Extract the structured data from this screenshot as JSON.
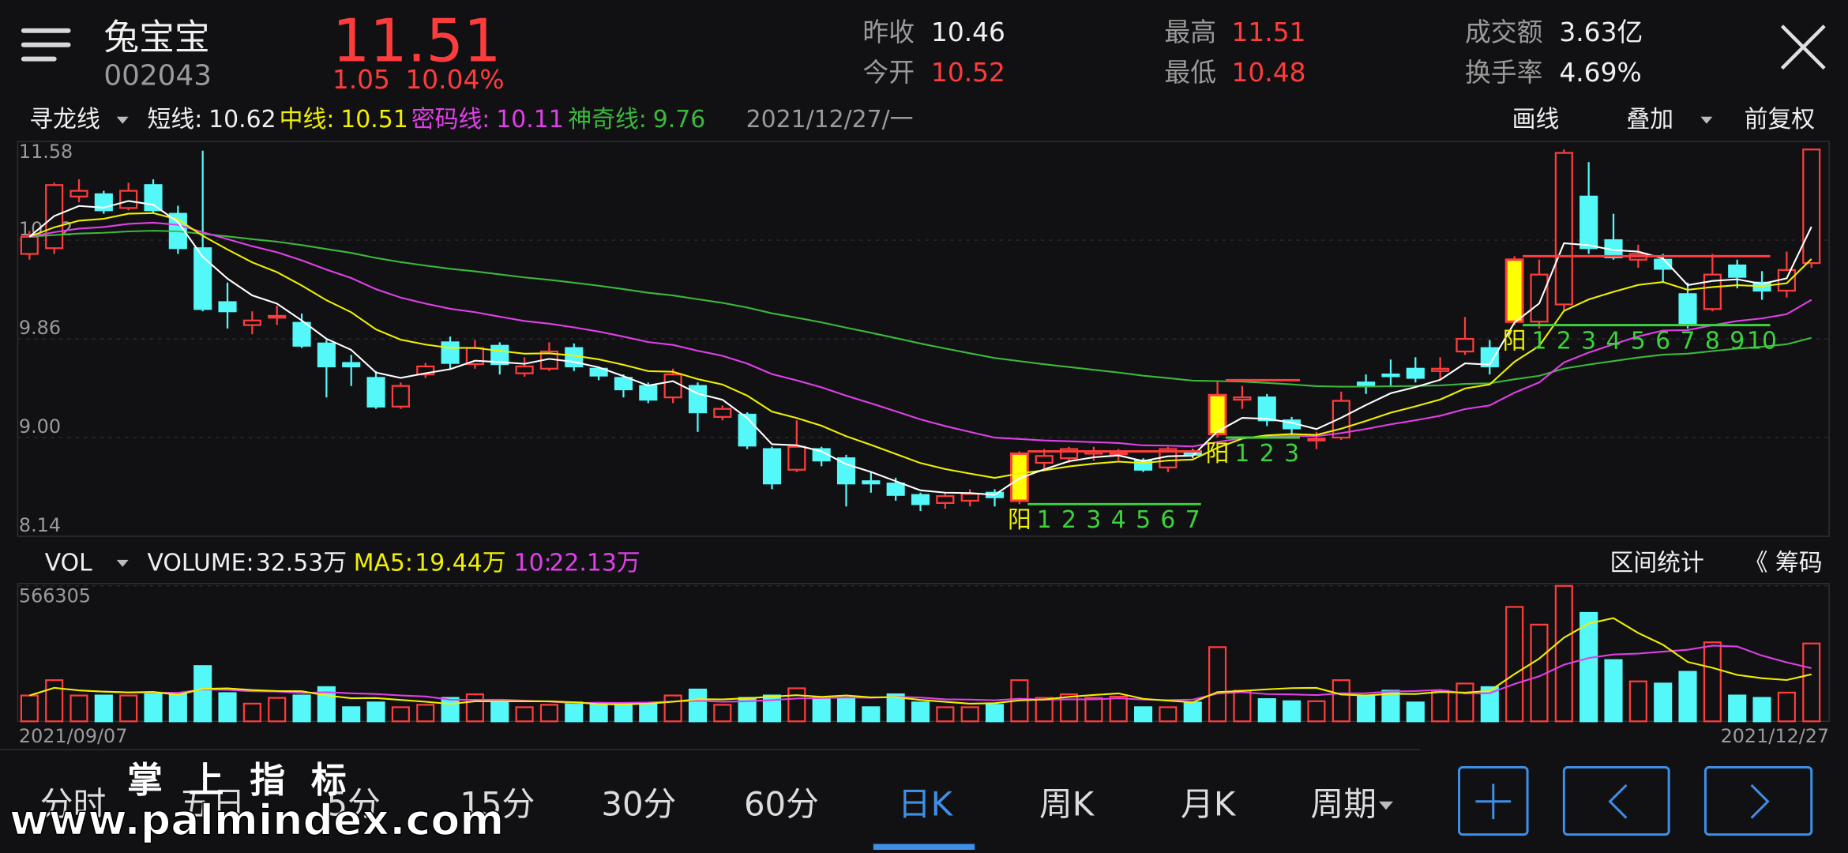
{
  "header": {
    "name": "兔宝宝",
    "code": "002043",
    "price": "11.51",
    "change": "1.05",
    "change_pct": "10.04%",
    "stats": [
      {
        "label": "昨收",
        "value": "10.46"
      },
      {
        "label": "今开",
        "value": "10.52"
      },
      {
        "label": "最高",
        "value": "11.51"
      },
      {
        "label": "最低",
        "value": "10.48"
      },
      {
        "label": "成交额",
        "value": "3.63亿"
      },
      {
        "label": "换手率",
        "value": "4.69%"
      }
    ]
  },
  "indicator_bar": {
    "name": "寻龙线",
    "items": [
      {
        "label": "短线:",
        "value": "10.62"
      },
      {
        "label": "中线:",
        "value": "10.51"
      },
      {
        "label": "密码线:",
        "value": "10.11"
      },
      {
        "label": "神奇线:",
        "value": "9.76"
      }
    ],
    "date": "2021/12/27/一",
    "actions": [
      "画线",
      "叠加",
      "前复权"
    ]
  },
  "volume_bar": {
    "name": "VOL",
    "items": [
      {
        "label": "VOLUME:",
        "value": "32.53万"
      },
      {
        "label": "MA5:",
        "value": "19.44万"
      },
      {
        "label": "10:",
        "value": "22.13万"
      }
    ],
    "actions": [
      "区间统计",
      "《 筹码"
    ]
  },
  "chart_data": {
    "type": "candlestick",
    "ylim": [
      8.14,
      11.58
    ],
    "yticks": [
      11.58,
      10.72,
      9.86,
      {
        "value": 9,
        "label": "9.00"
      },
      8.14
    ],
    "grid": true,
    "open": [
      10.6,
      10.65,
      11.1,
      11.12,
      11.0,
      11.2,
      10.95,
      10.65,
      10.18,
      9.98,
      10.05,
      10.0,
      9.82,
      9.65,
      9.52,
      9.27,
      9.55,
      9.83,
      9.64,
      9.8,
      9.56,
      9.6,
      9.78,
      9.6,
      9.52,
      9.45,
      9.35,
      9.45,
      9.18,
      9.2,
      8.9,
      8.72,
      8.9,
      8.82,
      8.62,
      8.6,
      8.5,
      8.43,
      8.45,
      8.52,
      8.45,
      8.78,
      8.82,
      8.86,
      8.86,
      8.8,
      8.74,
      8.88,
      9.03,
      9.33,
      9.35,
      9.15,
      8.99,
      9.0,
      9.48,
      9.55,
      9.6,
      9.58,
      9.75,
      9.78,
      10.01,
      10.01,
      10.16,
      11.1,
      10.72,
      10.55,
      10.55,
      10.25,
      10.12,
      10.5,
      10.35,
      10.28,
      10.52
    ],
    "high": [
      10.8,
      11.22,
      11.25,
      11.15,
      11.22,
      11.25,
      11.02,
      11.5,
      10.35,
      10.1,
      10.15,
      10.08,
      9.85,
      9.72,
      9.58,
      9.48,
      9.65,
      9.88,
      9.85,
      9.83,
      9.7,
      9.83,
      9.82,
      9.62,
      9.55,
      9.48,
      9.6,
      9.48,
      9.28,
      9.22,
      8.92,
      9.15,
      8.92,
      8.85,
      8.7,
      8.65,
      8.52,
      8.52,
      8.55,
      8.55,
      8.88,
      8.9,
      8.92,
      8.92,
      8.9,
      8.82,
      8.92,
      8.9,
      9.5,
      9.45,
      9.38,
      9.18,
      9.05,
      9.4,
      9.55,
      9.68,
      9.7,
      9.7,
      10.05,
      9.85,
      10.58,
      10.55,
      11.51,
      11.4,
      10.95,
      10.68,
      10.6,
      10.35,
      10.6,
      10.55,
      10.45,
      10.62,
      11.51
    ],
    "low": [
      10.55,
      10.6,
      11.05,
      10.95,
      10.98,
      10.95,
      10.6,
      10.1,
      9.95,
      9.9,
      9.98,
      9.78,
      9.35,
      9.45,
      9.25,
      9.25,
      9.52,
      9.6,
      9.6,
      9.55,
      9.53,
      9.58,
      9.58,
      9.5,
      9.35,
      9.3,
      9.3,
      9.05,
      9.15,
      8.9,
      8.55,
      8.7,
      8.75,
      8.4,
      8.52,
      8.45,
      8.36,
      8.38,
      8.4,
      8.4,
      8.42,
      8.72,
      8.78,
      8.8,
      8.8,
      8.7,
      8.7,
      8.82,
      9.0,
      9.25,
      9.1,
      9.02,
      8.9,
      8.98,
      9.38,
      9.45,
      9.48,
      9.5,
      9.72,
      9.55,
      9.98,
      9.95,
      10.1,
      10.6,
      10.55,
      10.48,
      10.35,
      9.95,
      10.1,
      10.3,
      10.2,
      10.22,
      10.48
    ],
    "close": [
      10.75,
      11.2,
      11.15,
      10.98,
      11.15,
      10.98,
      10.65,
      10.12,
      10.1,
      10.02,
      10.06,
      9.8,
      9.62,
      9.62,
      9.27,
      9.45,
      9.62,
      9.65,
      9.78,
      9.64,
      9.62,
      9.75,
      9.62,
      9.54,
      9.42,
      9.33,
      9.55,
      9.22,
      9.25,
      8.93,
      8.6,
      8.92,
      8.8,
      8.6,
      8.6,
      8.5,
      8.42,
      8.49,
      8.51,
      8.48,
      8.86,
      8.84,
      8.9,
      8.88,
      8.87,
      8.72,
      8.9,
      8.85,
      9.37,
      9.35,
      9.15,
      9.08,
      8.99,
      9.32,
      9.45,
      9.54,
      9.52,
      9.6,
      9.86,
      9.62,
      10.55,
      10.42,
      11.48,
      10.65,
      10.57,
      10.6,
      10.47,
      9.98,
      10.42,
      10.4,
      10.28,
      10.46,
      11.51
    ],
    "annotations": [
      {
        "label": "阳",
        "counts": [
          "1",
          "2",
          "3",
          "4",
          "5",
          "6",
          "7"
        ]
      },
      {
        "label": "阳",
        "counts": [
          "1",
          "2",
          "3"
        ]
      },
      {
        "label": "阳",
        "counts": [
          "1",
          "2",
          "3",
          "4",
          "5",
          "6",
          "7",
          "8",
          "9",
          "10"
        ]
      }
    ],
    "volume": {
      "ylim": [
        0,
        566305
      ],
      "yticks": [
        566305
      ],
      "values": [
        108000,
        172000,
        108000,
        108000,
        108000,
        118000,
        113000,
        231000,
        118000,
        74000,
        98000,
        108000,
        143000,
        59000,
        79000,
        59000,
        69000,
        98000,
        113000,
        79000,
        59000,
        69000,
        79000,
        74000,
        74000,
        74000,
        108000,
        133000,
        69000,
        98000,
        108000,
        138000,
        98000,
        98000,
        59000,
        113000,
        79000,
        59000,
        59000,
        69000,
        172000,
        98000,
        113000,
        98000,
        103000,
        59000,
        59000,
        79000,
        310000,
        128000,
        93000,
        84000,
        84000,
        172000,
        108000,
        128000,
        79000,
        128000,
        158000,
        143000,
        478000,
        404000,
        566000,
        453000,
        256000,
        167000,
        158000,
        207000,
        330000,
        108000,
        98000,
        120000,
        325300
      ]
    },
    "x_labels": [
      "2021/09/07",
      "2021/12/27"
    ]
  },
  "tabs": [
    "分时",
    "五日",
    "5分",
    "15分",
    "30分",
    "60分",
    "日K",
    "周K",
    "月K",
    "周期"
  ],
  "watermark": {
    "title": "掌上指标",
    "url": "www.palmindex.com"
  }
}
